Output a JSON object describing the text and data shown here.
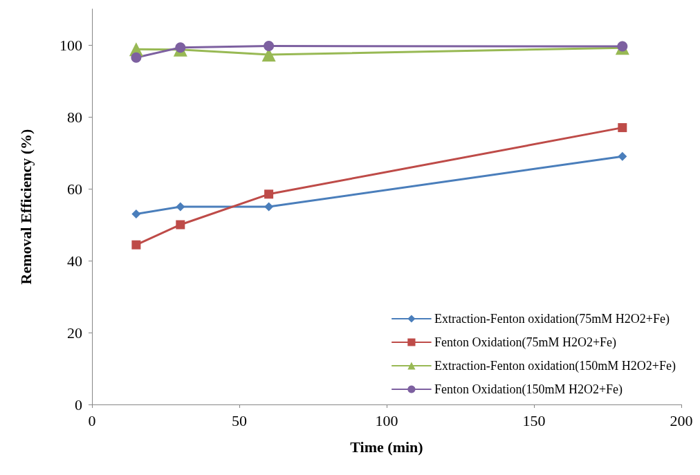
{
  "chart_data": {
    "type": "line",
    "xlabel": "Time (min)",
    "ylabel": "Removal Efficiency (%)",
    "x": [
      15,
      30,
      60,
      180
    ],
    "xlim": [
      0,
      200
    ],
    "xticks": [
      0,
      50,
      100,
      150,
      200
    ],
    "ylim": [
      0,
      110
    ],
    "yticks": [
      0,
      20,
      40,
      60,
      80,
      100
    ],
    "grid": false,
    "legend": "bottom right",
    "series": [
      {
        "name": "Extraction-Fenton oxidation(75mM H2O2+Fe)",
        "color": "#4a7ebb",
        "marker": "diamond",
        "values": [
          53,
          55,
          55,
          69
        ]
      },
      {
        "name": "Fenton Oxidation(75mM H2O2+Fe)",
        "color": "#be4b48",
        "marker": "square",
        "values": [
          44.4,
          50,
          58.5,
          77
        ]
      },
      {
        "name": "Extraction-Fenton oxidation(150mM H2O2+Fe)",
        "color": "#98b954",
        "marker": "triangle",
        "values": [
          98.8,
          98.7,
          97.3,
          99.2
        ]
      },
      {
        "name": "Fenton Oxidation(150mM H2O2+Fe)",
        "color": "#7d60a0",
        "marker": "circle",
        "values": [
          96.5,
          99.3,
          99.7,
          99.6
        ]
      }
    ]
  }
}
